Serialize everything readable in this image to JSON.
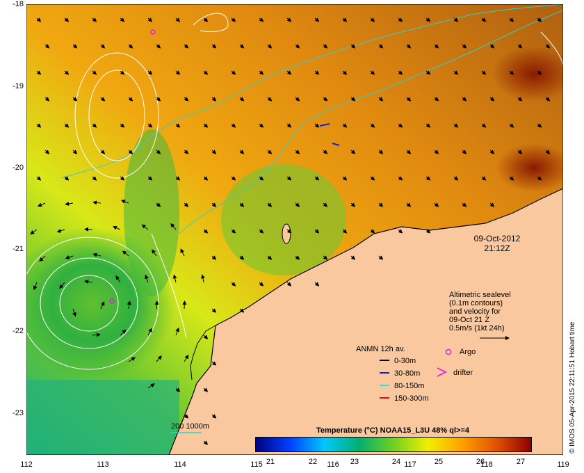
{
  "map": {
    "lat_ticks": [
      "-18",
      "-19",
      "-20",
      "-21",
      "-22",
      "-23"
    ],
    "lon_ticks": [
      "112",
      "113",
      "114",
      "115",
      "116",
      "117",
      "118",
      "119"
    ],
    "date": "09-Oct-2012",
    "time": "21:12Z",
    "credit": "© IMOS 05-Apr-2015 22:11:51 Hobart time",
    "colors": {
      "land": "#f9c89f",
      "coast": "#000000",
      "isobath": "#30d0c8",
      "contour": "#ffffff"
    }
  },
  "altimetry": {
    "line1": "Altimetric sealevel",
    "line2": "(0.1m contours)",
    "line3": "and velocity for",
    "line4": "09-Oct 21 Z",
    "line5": "0.5m/s (1kt 24h)"
  },
  "anmn": {
    "title": "ANMN 12h av.",
    "items": [
      {
        "label": "0-30m",
        "color": "#000000"
      },
      {
        "label": "30-80m",
        "color": "#1020e0"
      },
      {
        "label": "80-150m",
        "color": "#30e0e0"
      },
      {
        "label": "150-300m",
        "color": "#e01010"
      }
    ]
  },
  "markers": {
    "argo_label": "Argo",
    "drifter_label": "drifter",
    "argo_color": "#e020e0",
    "drifter_color": "#e020e0"
  },
  "isobath_label": "200  1000m",
  "colorbar": {
    "title": "Temperature (°C) NOAA15_L3U 48% ql>=4",
    "ticks": [
      "21",
      "22",
      "23",
      "24",
      "25",
      "26",
      "27"
    ],
    "stops": [
      "#00007f",
      "#0040ff",
      "#00c8ff",
      "#00b070",
      "#70d020",
      "#f0f000",
      "#ffa000",
      "#e05000",
      "#8b0000"
    ]
  }
}
